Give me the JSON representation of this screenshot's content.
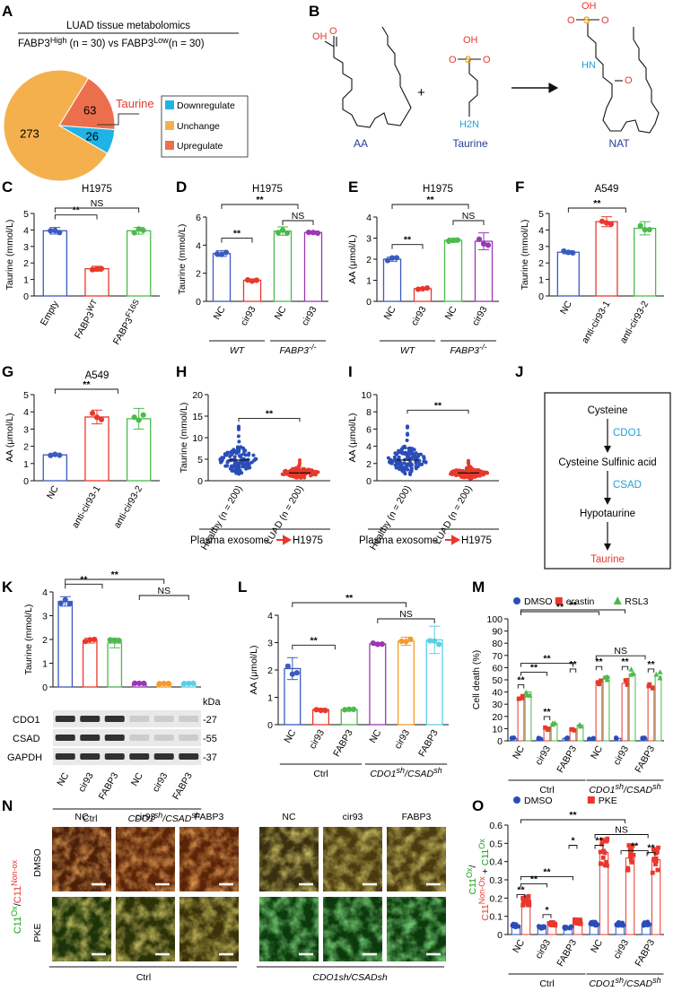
{
  "panel_letters": [
    "A",
    "B",
    "C",
    "D",
    "E",
    "F",
    "G",
    "H",
    "I",
    "J",
    "K",
    "L",
    "M",
    "N",
    "O"
  ],
  "panelA": {
    "title": "LUAD tissue metabolomics",
    "subtitle_pre": "FABP3",
    "subtitle_high": "High",
    "subtitle_mid": " (n = 30) vs FABP3",
    "subtitle_low": "Low",
    "subtitle_post": "(n = 30)",
    "callout": "Taurine",
    "legend": [
      {
        "label": "Downregulate",
        "color": "#1fb3e6"
      },
      {
        "label": "Unchange",
        "color": "#f5b04e"
      },
      {
        "label": "Upregulate",
        "color": "#ec6f4d"
      }
    ]
  },
  "panelB": {
    "labels": [
      "AA",
      "Taurine",
      "NAT"
    ],
    "plus": "+",
    "atoms": {
      "oh": "OH",
      "o": "O",
      "s": "S",
      "h2n": "H2N",
      "hn": "HN"
    }
  },
  "panelJ": {
    "steps": [
      "Cysteine",
      "Cysteine Sulfinic acid",
      "Hypotaurine",
      "Taurine"
    ],
    "enzymes": [
      "CDO1",
      "CSAD"
    ]
  },
  "panelK_blot": {
    "unit": "kDa",
    "rows": [
      {
        "name": "CDO1",
        "kda": "-27"
      },
      {
        "name": "CSAD",
        "kda": "-55"
      },
      {
        "name": "GAPDH",
        "kda": "-37"
      }
    ]
  },
  "panelN": {
    "cols": [
      "NC",
      "cir93",
      "FABP3",
      "NC",
      "cir93",
      "FABP3"
    ],
    "rows": [
      "DMSO",
      "PKE"
    ],
    "ylab_ox": "C11",
    "ylab_ox_sup": "Ox",
    "ylab_slash": "/",
    "ylab_non": "C11",
    "ylab_non_sup": "Non-ox",
    "group_ctrl": "Ctrl",
    "group_ko": "CDO1sh/CSADsh"
  },
  "chart_data": [
    {
      "panel": "A",
      "type": "pie",
      "values": [
        26,
        273,
        63
      ],
      "labels": [
        "Downregulate",
        "Unchange",
        "Upregulate"
      ],
      "colors": [
        "#1fb3e6",
        "#f5b04e",
        "#ec6f4d"
      ]
    },
    {
      "panel": "C",
      "type": "bar",
      "title": "H1975",
      "ylabel": "Taurine (mmol/L)",
      "ylim": [
        0,
        5
      ],
      "yticks": [
        0,
        1,
        2,
        3,
        4,
        5
      ],
      "categories": [
        "Empty",
        "FABP3WT",
        "FABP3F16S"
      ],
      "values": [
        3.95,
        1.65,
        3.95
      ],
      "errors": [
        0.2,
        0.15,
        0.2
      ],
      "colors": [
        "#3a5bbf",
        "#e8382c",
        "#4cba4c"
      ],
      "sig": [
        {
          "from": 0,
          "to": 1,
          "text": "**",
          "level": 1
        },
        {
          "from": 0,
          "to": 2,
          "text": "NS",
          "level": 2
        }
      ]
    },
    {
      "panel": "D",
      "type": "bar",
      "title": "H1975",
      "ylabel": "Taurine (mmol/L)",
      "ylim": [
        0,
        6
      ],
      "yticks": [
        0,
        2,
        4,
        6
      ],
      "categories": [
        "NC",
        "cir93",
        "NC",
        "cir93"
      ],
      "values": [
        3.4,
        1.5,
        5.0,
        4.9
      ],
      "errors": [
        0.2,
        0.1,
        0.3,
        0.1
      ],
      "colors": [
        "#3a5bbf",
        "#e8382c",
        "#4cba4c",
        "#9b37b5"
      ],
      "groups": [
        {
          "label": "WT",
          "from": 0,
          "to": 1
        },
        {
          "label": "FABP3-/-",
          "from": 2,
          "to": 3
        }
      ],
      "sig": [
        {
          "from": 0,
          "to": 1,
          "text": "**",
          "level": 1
        },
        {
          "from": 2,
          "to": 3,
          "text": "NS",
          "level": 1
        },
        {
          "from": 0,
          "to": 2.5,
          "text": "**",
          "level": 3
        }
      ]
    },
    {
      "panel": "E",
      "type": "bar",
      "title": "H1975",
      "ylabel": "AA (μmol/L)",
      "ylim": [
        0,
        4
      ],
      "yticks": [
        0,
        1,
        2,
        3,
        4
      ],
      "categories": [
        "NC",
        "cir93",
        "NC",
        "cir93"
      ],
      "values": [
        2.0,
        0.6,
        2.9,
        2.85
      ],
      "errors": [
        0.1,
        0.05,
        0.1,
        0.4
      ],
      "colors": [
        "#3a5bbf",
        "#e8382c",
        "#4cba4c",
        "#9b37b5"
      ],
      "groups": [
        {
          "label": "WT",
          "from": 0,
          "to": 1
        },
        {
          "label": "FABP3-/-",
          "from": 2,
          "to": 3
        }
      ],
      "sig": [
        {
          "from": 0,
          "to": 1,
          "text": "**",
          "level": 1
        },
        {
          "from": 2,
          "to": 3,
          "text": "NS",
          "level": 1
        },
        {
          "from": 0,
          "to": 2.5,
          "text": "**",
          "level": 3
        }
      ]
    },
    {
      "panel": "F",
      "type": "bar",
      "title": "A549",
      "ylabel": "Taurine (mmol/L)",
      "ylim": [
        0,
        5
      ],
      "yticks": [
        0,
        1,
        2,
        3,
        4,
        5
      ],
      "categories": [
        "NC",
        "anti-cir93-1",
        "anti-cir93-2"
      ],
      "values": [
        2.65,
        4.5,
        4.1
      ],
      "errors": [
        0.1,
        0.3,
        0.4
      ],
      "colors": [
        "#3a5bbf",
        "#e8382c",
        "#4cba4c"
      ],
      "sig": [
        {
          "from": 0,
          "to": 1.5,
          "text": "**",
          "level": 2
        }
      ]
    },
    {
      "panel": "G",
      "type": "bar",
      "title": "A549",
      "ylabel": "AA (μmol/L)",
      "ylim": [
        0,
        5
      ],
      "yticks": [
        0,
        1,
        2,
        3,
        4,
        5
      ],
      "categories": [
        "NC",
        "anti-cir93-1",
        "anti-cir93-2"
      ],
      "values": [
        1.5,
        3.7,
        3.6
      ],
      "errors": [
        0.05,
        0.4,
        0.6
      ],
      "colors": [
        "#3a5bbf",
        "#e8382c",
        "#4cba4c"
      ],
      "sig": [
        {
          "from": 0,
          "to": 1.5,
          "text": "**",
          "level": 2
        }
      ]
    },
    {
      "panel": "H",
      "type": "scatter",
      "ylabel": "Taurine (mmol/L)",
      "ylim": [
        0,
        20
      ],
      "yticks": [
        0,
        5,
        10,
        15,
        20
      ],
      "categories": [
        "Healthy (n = 200)",
        "LUAD (n = 200)"
      ],
      "values": [
        4.8,
        1.8
      ],
      "errors": [
        2.0,
        0.8
      ],
      "colors": [
        "#2a4db8",
        "#e8382c"
      ],
      "n": 200,
      "xlabel": "Plasma exosome",
      "xlabel_target": "H1975",
      "sig": [
        {
          "from": 0,
          "to": 1,
          "text": "**",
          "level": 1
        }
      ]
    },
    {
      "panel": "I",
      "type": "scatter",
      "ylabel": "AA (μmol/L)",
      "ylim": [
        0,
        10
      ],
      "yticks": [
        0,
        2,
        4,
        6,
        8,
        10
      ],
      "categories": [
        "Healthy (n = 200)",
        "LUAD (n = 200)"
      ],
      "values": [
        2.4,
        0.9
      ],
      "errors": [
        1.0,
        0.4
      ],
      "colors": [
        "#2a4db8",
        "#e8382c"
      ],
      "n": 200,
      "xlabel": "Plasma exosome",
      "xlabel_target": "H1975",
      "sig": [
        {
          "from": 0,
          "to": 1,
          "text": "**",
          "level": 1
        }
      ]
    },
    {
      "panel": "K",
      "type": "bar",
      "ylabel": "Taurine (mmol/L)",
      "ylim": [
        0,
        4
      ],
      "yticks": [
        0,
        1,
        2,
        3,
        4
      ],
      "categories": [
        "NC",
        "cir93",
        "FABP3",
        "NC",
        "cir93",
        "FABP3"
      ],
      "values": [
        3.6,
        1.95,
        1.85,
        0.15,
        0.15,
        0.15
      ],
      "errors": [
        0.2,
        0.1,
        0.2,
        0.02,
        0.02,
        0.02
      ],
      "colors": [
        "#3a5bbf",
        "#e8382c",
        "#4cba4c",
        "#9b37b5",
        "#f59a2c",
        "#5ccfe6"
      ],
      "groups": [
        {
          "label": "Ctrl",
          "from": 0,
          "to": 2
        },
        {
          "label": "CDO1sh/CSADsh",
          "from": 3,
          "to": 5
        }
      ],
      "sig": [
        {
          "from": 0,
          "to": 1.5,
          "text": "**",
          "level": 1
        },
        {
          "from": 3,
          "to": 5,
          "text": "NS",
          "level": 1
        },
        {
          "from": 0,
          "to": 4,
          "text": "**",
          "level": 3
        }
      ]
    },
    {
      "panel": "L",
      "type": "bar",
      "ylabel": "AA (μmol/L)",
      "ylim": [
        0,
        4
      ],
      "yticks": [
        0,
        1,
        2,
        3,
        4
      ],
      "categories": [
        "NC",
        "cir93",
        "FABP3",
        "NC",
        "cir93",
        "FABP3"
      ],
      "values": [
        2.05,
        0.55,
        0.55,
        2.95,
        3.05,
        3.1
      ],
      "errors": [
        0.4,
        0.05,
        0.05,
        0.05,
        0.15,
        0.5
      ],
      "colors": [
        "#3a5bbf",
        "#e8382c",
        "#4cba4c",
        "#9b37b5",
        "#f59a2c",
        "#5ccfe6"
      ],
      "groups": [
        {
          "label": "Ctrl",
          "from": 0,
          "to": 2
        },
        {
          "label": "CDO1sh/CSADsh",
          "from": 3,
          "to": 5
        }
      ],
      "sig": [
        {
          "from": 0,
          "to": 1.5,
          "text": "**",
          "level": 1
        },
        {
          "from": 3,
          "to": 5,
          "text": "NS",
          "level": 1
        },
        {
          "from": 0,
          "to": 4,
          "text": "**",
          "level": 3
        }
      ]
    },
    {
      "panel": "M",
      "type": "bar",
      "ylabel": "Cell death (%)",
      "ylim": [
        0,
        100
      ],
      "yticks": [
        0,
        10,
        20,
        30,
        40,
        50,
        60,
        70,
        80,
        90,
        100
      ],
      "categories": [
        "NC",
        "cir93",
        "FABP3",
        "NC",
        "cir93",
        "FABP3"
      ],
      "series": [
        {
          "name": "DMSO",
          "values": [
            2,
            2,
            2,
            2,
            2,
            2
          ],
          "color": "#2a4db8",
          "marker": "circle"
        },
        {
          "name": "erastin",
          "values": [
            36,
            10,
            9,
            47,
            47,
            45
          ],
          "color": "#e8382c",
          "marker": "square"
        },
        {
          "name": "RSL3",
          "values": [
            40,
            14,
            13,
            53,
            55,
            53
          ],
          "color": "#4cba4c",
          "marker": "triangle"
        }
      ],
      "groups": [
        {
          "label": "Ctrl",
          "from": 0,
          "to": 2
        },
        {
          "label": "CDO1sh/CSADsh",
          "from": 3,
          "to": 5
        }
      ],
      "sig": [
        "**",
        "**",
        "**",
        "**",
        "**",
        "**",
        "**",
        "**",
        "**",
        "**",
        "**",
        "NS"
      ]
    },
    {
      "panel": "O",
      "type": "bar",
      "ylabel": "C11Ox/ C11Non-Ox + C11Ox",
      "ylim": [
        0,
        0.6
      ],
      "yticks": [
        0,
        0.1,
        0.2,
        0.3,
        0.4,
        0.5,
        0.6
      ],
      "categories": [
        "NC",
        "cir93",
        "FABP3",
        "NC",
        "cir93",
        "FABP3"
      ],
      "series": [
        {
          "name": "DMSO",
          "values": [
            0.05,
            0.04,
            0.04,
            0.06,
            0.06,
            0.06
          ],
          "color": "#2a4db8",
          "marker": "circle"
        },
        {
          "name": "PKE",
          "values": [
            0.18,
            0.06,
            0.07,
            0.45,
            0.42,
            0.41
          ],
          "color": "#e8382c",
          "marker": "square"
        }
      ],
      "groups": [
        {
          "label": "Ctrl",
          "from": 0,
          "to": 2
        },
        {
          "label": "CDO1sh/CSADsh",
          "from": 3,
          "to": 5
        }
      ],
      "sig": [
        "**",
        "**",
        "*",
        "*",
        "**",
        "**",
        "**",
        "**",
        "NS"
      ]
    }
  ]
}
